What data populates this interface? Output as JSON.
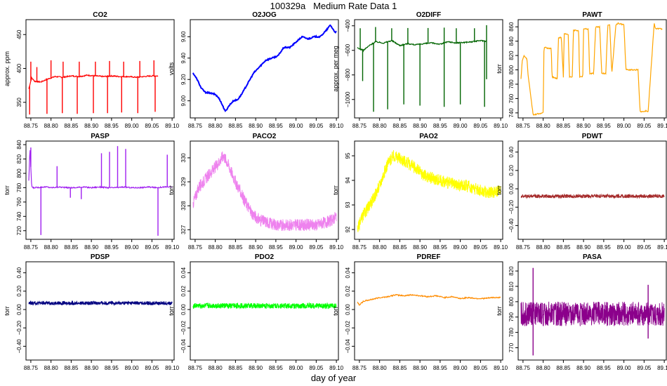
{
  "page": {
    "title": "100329a   Medium Rate Data 1",
    "xlabel": "day of year"
  },
  "chart_data": [
    {
      "id": "co2",
      "title": "CO2",
      "type": "line",
      "color": "#ff0000",
      "ylabel": "approx. ppm",
      "xlim": [
        88.738,
        89.105
      ],
      "ylim": [
        327,
        472
      ],
      "xticks": [
        88.75,
        88.8,
        88.85,
        88.9,
        88.95,
        89.0,
        89.05,
        89.1
      ],
      "yticks": [
        350,
        400,
        450
      ],
      "x": [
        88.745,
        88.752,
        88.76,
        88.775,
        88.79,
        88.81,
        88.83,
        88.85,
        88.87,
        88.89,
        88.91,
        88.93,
        88.95,
        88.97,
        88.99,
        89.01,
        89.03,
        89.05,
        89.065
      ],
      "y": [
        370,
        386,
        381,
        380,
        384,
        388,
        387,
        389,
        388,
        390,
        389,
        388,
        389,
        388,
        388,
        387,
        388,
        389,
        389
      ],
      "spikes_up": [
        [
          88.75,
          410
        ],
        [
          88.765,
          402
        ],
        [
          88.8,
          412
        ],
        [
          88.83,
          410
        ],
        [
          88.87,
          410
        ],
        [
          88.91,
          410
        ],
        [
          88.945,
          411
        ],
        [
          88.98,
          410
        ],
        [
          89.02,
          411
        ],
        [
          89.055,
          412
        ]
      ],
      "spikes_down": [
        [
          88.747,
          332
        ],
        [
          88.79,
          333
        ],
        [
          88.828,
          334
        ],
        [
          88.865,
          333
        ],
        [
          88.905,
          334
        ],
        [
          88.94,
          334
        ],
        [
          88.975,
          335
        ],
        [
          89.015,
          334
        ],
        [
          89.058,
          336
        ]
      ]
    },
    {
      "id": "o2jog",
      "title": "O2JOG",
      "type": "line",
      "color": "#0000ff",
      "ylabel": "volts",
      "xlim": [
        88.738,
        89.105
      ],
      "ylim": [
        8.84,
        9.76
      ],
      "xticks": [
        88.75,
        88.8,
        88.85,
        88.9,
        88.95,
        89.0,
        89.05,
        89.1
      ],
      "yticks": [
        9.0,
        9.2,
        9.4,
        9.6
      ],
      "x": [
        88.745,
        88.755,
        88.765,
        88.775,
        88.79,
        88.8,
        88.81,
        88.825,
        88.835,
        88.845,
        88.855,
        88.865,
        88.88,
        88.895,
        88.91,
        88.925,
        88.94,
        88.955,
        88.97,
        88.985,
        89.0,
        89.015,
        89.03,
        89.045,
        89.06,
        89.075,
        89.085,
        89.095,
        89.1
      ],
      "y": [
        9.26,
        9.2,
        9.12,
        9.08,
        9.07,
        9.06,
        9.02,
        8.9,
        8.96,
        9.0,
        9.01,
        9.06,
        9.16,
        9.26,
        9.32,
        9.38,
        9.4,
        9.42,
        9.5,
        9.5,
        9.55,
        9.6,
        9.58,
        9.6,
        9.6,
        9.66,
        9.71,
        9.65,
        9.64
      ]
    },
    {
      "id": "o2diff",
      "title": "O2DIFF",
      "type": "line",
      "color": "#006400",
      "ylabel": "approx. per meg",
      "xlim": [
        88.738,
        89.105
      ],
      "ylim": [
        -1150,
        -350
      ],
      "xticks": [
        88.75,
        88.8,
        88.85,
        88.9,
        88.95,
        89.0,
        89.05,
        89.1
      ],
      "yticks": [
        -1000,
        -800,
        -600,
        -400
      ],
      "x": [
        88.745,
        88.76,
        88.775,
        88.79,
        88.81,
        88.83,
        88.85,
        88.87,
        88.89,
        88.91,
        88.93,
        88.95,
        88.97,
        88.99,
        89.01,
        89.03,
        89.05,
        89.065
      ],
      "y": [
        -580,
        -600,
        -560,
        -530,
        -540,
        -520,
        -560,
        -545,
        -555,
        -545,
        -540,
        -550,
        -530,
        -540,
        -535,
        -530,
        -520,
        -525
      ],
      "spikes_up": [
        [
          88.752,
          -420
        ],
        [
          88.79,
          -410
        ],
        [
          88.83,
          -420
        ],
        [
          88.87,
          -418
        ],
        [
          88.92,
          -418
        ],
        [
          88.96,
          -415
        ],
        [
          88.99,
          -420
        ],
        [
          89.035,
          -420
        ],
        [
          89.065,
          -395
        ]
      ],
      "spikes_down": [
        [
          88.758,
          -850
        ],
        [
          88.785,
          -1100
        ],
        [
          88.82,
          -1080
        ],
        [
          88.86,
          -1040
        ],
        [
          88.9,
          -1050
        ],
        [
          88.96,
          -1060
        ],
        [
          89.0,
          -1040
        ],
        [
          89.06,
          -1060
        ],
        [
          89.065,
          -835
        ]
      ]
    },
    {
      "id": "pawt",
      "title": "PAWT",
      "type": "line",
      "color": "#ffa500",
      "ylabel": "torr",
      "xlim": [
        88.738,
        89.105
      ],
      "ylim": [
        733,
        870
      ],
      "xticks": [
        88.75,
        88.8,
        88.85,
        88.9,
        88.95,
        89.0,
        89.05,
        89.1
      ],
      "yticks": [
        740,
        760,
        780,
        800,
        820,
        840,
        860
      ],
      "x": [
        88.745,
        88.748,
        88.752,
        88.76,
        88.762,
        88.775,
        88.778,
        88.782,
        88.8,
        88.802,
        88.81,
        88.82,
        88.822,
        88.835,
        88.838,
        88.845,
        88.85,
        88.852,
        88.862,
        88.865,
        88.872,
        88.875,
        88.888,
        88.89,
        88.898,
        88.9,
        88.912,
        88.915,
        88.925,
        88.93,
        88.94,
        88.945,
        88.955,
        88.96,
        88.965,
        88.97,
        88.98,
        88.985,
        89.0,
        89.005,
        89.035,
        89.04,
        89.05,
        89.055,
        89.06,
        89.075,
        89.078,
        89.095
      ],
      "y": [
        788,
        812,
        820,
        815,
        795,
        738,
        737,
        738,
        740,
        832,
        830,
        830,
        790,
        788,
        845,
        845,
        790,
        850,
        850,
        790,
        790,
        855,
        855,
        790,
        790,
        857,
        857,
        795,
        795,
        860,
        860,
        795,
        795,
        862,
        862,
        795,
        862,
        865,
        863,
        800,
        800,
        742,
        742,
        743,
        742,
        865,
        858,
        857
      ]
    },
    {
      "id": "pasp",
      "title": "PASP",
      "type": "line",
      "color": "#a020f0",
      "ylabel": "torr",
      "xlim": [
        88.738,
        89.105
      ],
      "ylim": [
        708,
        845
      ],
      "xticks": [
        88.75,
        88.8,
        88.85,
        88.9,
        88.95,
        89.0,
        89.05,
        89.1
      ],
      "yticks": [
        720,
        740,
        760,
        780,
        800,
        820,
        840
      ],
      "x": [
        88.745,
        88.748,
        88.752,
        88.755,
        88.76,
        88.78,
        88.79,
        88.8,
        88.82,
        88.84,
        88.86,
        88.88,
        88.9,
        88.92,
        88.94,
        88.96,
        88.98,
        89.0,
        89.02,
        89.04,
        89.06,
        89.08,
        89.1
      ],
      "y": [
        790,
        836,
        782,
        780,
        780,
        781,
        781,
        780,
        781,
        780,
        780,
        781,
        780,
        781,
        780,
        780,
        781,
        780,
        780,
        781,
        780,
        781,
        781
      ],
      "spikes_up": [
        [
          88.75,
          836
        ],
        [
          88.815,
          810
        ],
        [
          88.925,
          828
        ],
        [
          88.945,
          830
        ],
        [
          88.965,
          838
        ],
        [
          88.985,
          834
        ],
        [
          89.088,
          826
        ]
      ],
      "spikes_down": [
        [
          88.775,
          714
        ],
        [
          88.848,
          766
        ],
        [
          88.875,
          764
        ],
        [
          89.065,
          713
        ]
      ]
    },
    {
      "id": "paco2",
      "title": "PACO2",
      "type": "band",
      "color": "#ee82ee",
      "ylabel": "torr",
      "xlim": [
        88.738,
        89.105
      ],
      "ylim": [
        326.6,
        330.7
      ],
      "xticks": [
        88.75,
        88.8,
        88.85,
        88.9,
        88.95,
        89.0,
        89.05,
        89.1
      ],
      "yticks": [
        327,
        328,
        329,
        330
      ],
      "x": [
        88.745,
        88.76,
        88.78,
        88.8,
        88.82,
        88.83,
        88.85,
        88.87,
        88.89,
        88.91,
        88.93,
        88.95,
        88.97,
        88.99,
        89.01,
        89.03,
        89.05,
        89.07,
        89.09,
        89.1
      ],
      "y": [
        328.1,
        328.8,
        329.2,
        329.6,
        330.1,
        329.8,
        329.0,
        328.3,
        327.7,
        327.4,
        327.3,
        327.2,
        327.2,
        327.2,
        327.2,
        327.2,
        327.2,
        327.3,
        327.4,
        327.6
      ],
      "spread": 0.25
    },
    {
      "id": "pao2",
      "title": "PAO2",
      "type": "band",
      "color": "#ffff00",
      "ylabel": "torr",
      "xlim": [
        88.738,
        89.105
      ],
      "ylim": [
        91.6,
        95.6
      ],
      "xticks": [
        88.75,
        88.8,
        88.85,
        88.9,
        88.95,
        89.0,
        89.05,
        89.1
      ],
      "yticks": [
        92,
        93,
        94,
        95
      ],
      "x": [
        88.745,
        88.76,
        88.78,
        88.8,
        88.82,
        88.835,
        88.85,
        88.87,
        88.89,
        88.91,
        88.93,
        88.95,
        88.97,
        88.99,
        89.01,
        89.03,
        89.05,
        89.07,
        89.09,
        89.1
      ],
      "y": [
        92.0,
        92.6,
        93.1,
        93.8,
        94.7,
        95.0,
        94.9,
        94.7,
        94.5,
        94.2,
        94.1,
        94.0,
        93.9,
        93.8,
        93.8,
        93.7,
        93.6,
        93.5,
        93.5,
        93.7
      ],
      "spread": 0.25
    },
    {
      "id": "pdwt",
      "title": "PDWT",
      "type": "band",
      "color": "#a52a2a",
      "ylabel": "torr",
      "xlim": [
        88.738,
        89.105
      ],
      "ylim": [
        -0.55,
        0.52
      ],
      "xticks": [
        88.75,
        88.8,
        88.85,
        88.9,
        88.95,
        89.0,
        89.05,
        89.1
      ],
      "yticks": [
        -0.4,
        -0.2,
        0.0,
        0.2,
        0.4
      ],
      "x": [
        88.745,
        89.1
      ],
      "y": [
        -0.08,
        -0.08
      ],
      "spread": 0.02
    },
    {
      "id": "pdsp",
      "title": "PDSP",
      "type": "band",
      "color": "#000080",
      "ylabel": "torr",
      "xlim": [
        88.738,
        89.105
      ],
      "ylim": [
        -0.55,
        0.52
      ],
      "xticks": [
        88.75,
        88.8,
        88.85,
        88.9,
        88.95,
        89.0,
        89.05,
        89.1
      ],
      "yticks": [
        -0.4,
        -0.2,
        0.0,
        0.2,
        0.4
      ],
      "x": [
        88.745,
        89.1
      ],
      "y": [
        0.07,
        0.07
      ],
      "spread": 0.02
    },
    {
      "id": "pdo2",
      "title": "PDO2",
      "type": "band",
      "color": "#00ff00",
      "ylabel": "torr",
      "xlim": [
        88.738,
        89.105
      ],
      "ylim": [
        -0.055,
        0.052
      ],
      "xticks": [
        88.75,
        88.8,
        88.85,
        88.9,
        88.95,
        89.0,
        89.05,
        89.1
      ],
      "yticks": [
        -0.04,
        -0.02,
        0.0,
        0.02,
        0.04
      ],
      "x": [
        88.745,
        89.1
      ],
      "y": [
        0.004,
        0.004
      ],
      "spread": 0.003
    },
    {
      "id": "pdref",
      "title": "PDREF",
      "type": "line",
      "color": "#ff8c00",
      "ylabel": "torr",
      "xlim": [
        88.738,
        89.105
      ],
      "ylim": [
        -0.055,
        0.052
      ],
      "xticks": [
        88.75,
        88.8,
        88.85,
        88.9,
        88.95,
        89.0,
        89.05,
        89.1
      ],
      "yticks": [
        -0.04,
        -0.02,
        0.0,
        0.02,
        0.04
      ],
      "x": [
        88.745,
        88.75,
        88.76,
        88.78,
        88.8,
        88.82,
        88.84,
        88.86,
        88.88,
        88.9,
        88.92,
        88.94,
        88.96,
        88.98,
        89.0,
        89.02,
        89.04,
        89.06,
        89.08,
        89.1
      ],
      "y": [
        0.008,
        0.005,
        0.009,
        0.011,
        0.013,
        0.014,
        0.016,
        0.015,
        0.016,
        0.015,
        0.014,
        0.015,
        0.013,
        0.014,
        0.012,
        0.013,
        0.012,
        0.012,
        0.013,
        0.013
      ]
    },
    {
      "id": "pasa",
      "title": "PASA",
      "type": "band",
      "color": "#8b008b",
      "ylabel": "torr",
      "xlim": [
        88.738,
        89.105
      ],
      "ylim": [
        762,
        826
      ],
      "xticks": [
        88.75,
        88.8,
        88.85,
        88.9,
        88.95,
        89.0,
        89.05,
        89.1
      ],
      "yticks": [
        770,
        780,
        790,
        800,
        810,
        820
      ],
      "x": [
        88.745,
        89.1
      ],
      "y": [
        792,
        792
      ],
      "spread": 8,
      "spikes_up": [
        [
          88.775,
          822
        ],
        [
          89.06,
          811
        ]
      ],
      "spikes_down": [
        [
          88.775,
          765
        ],
        [
          89.06,
          776
        ]
      ]
    }
  ]
}
